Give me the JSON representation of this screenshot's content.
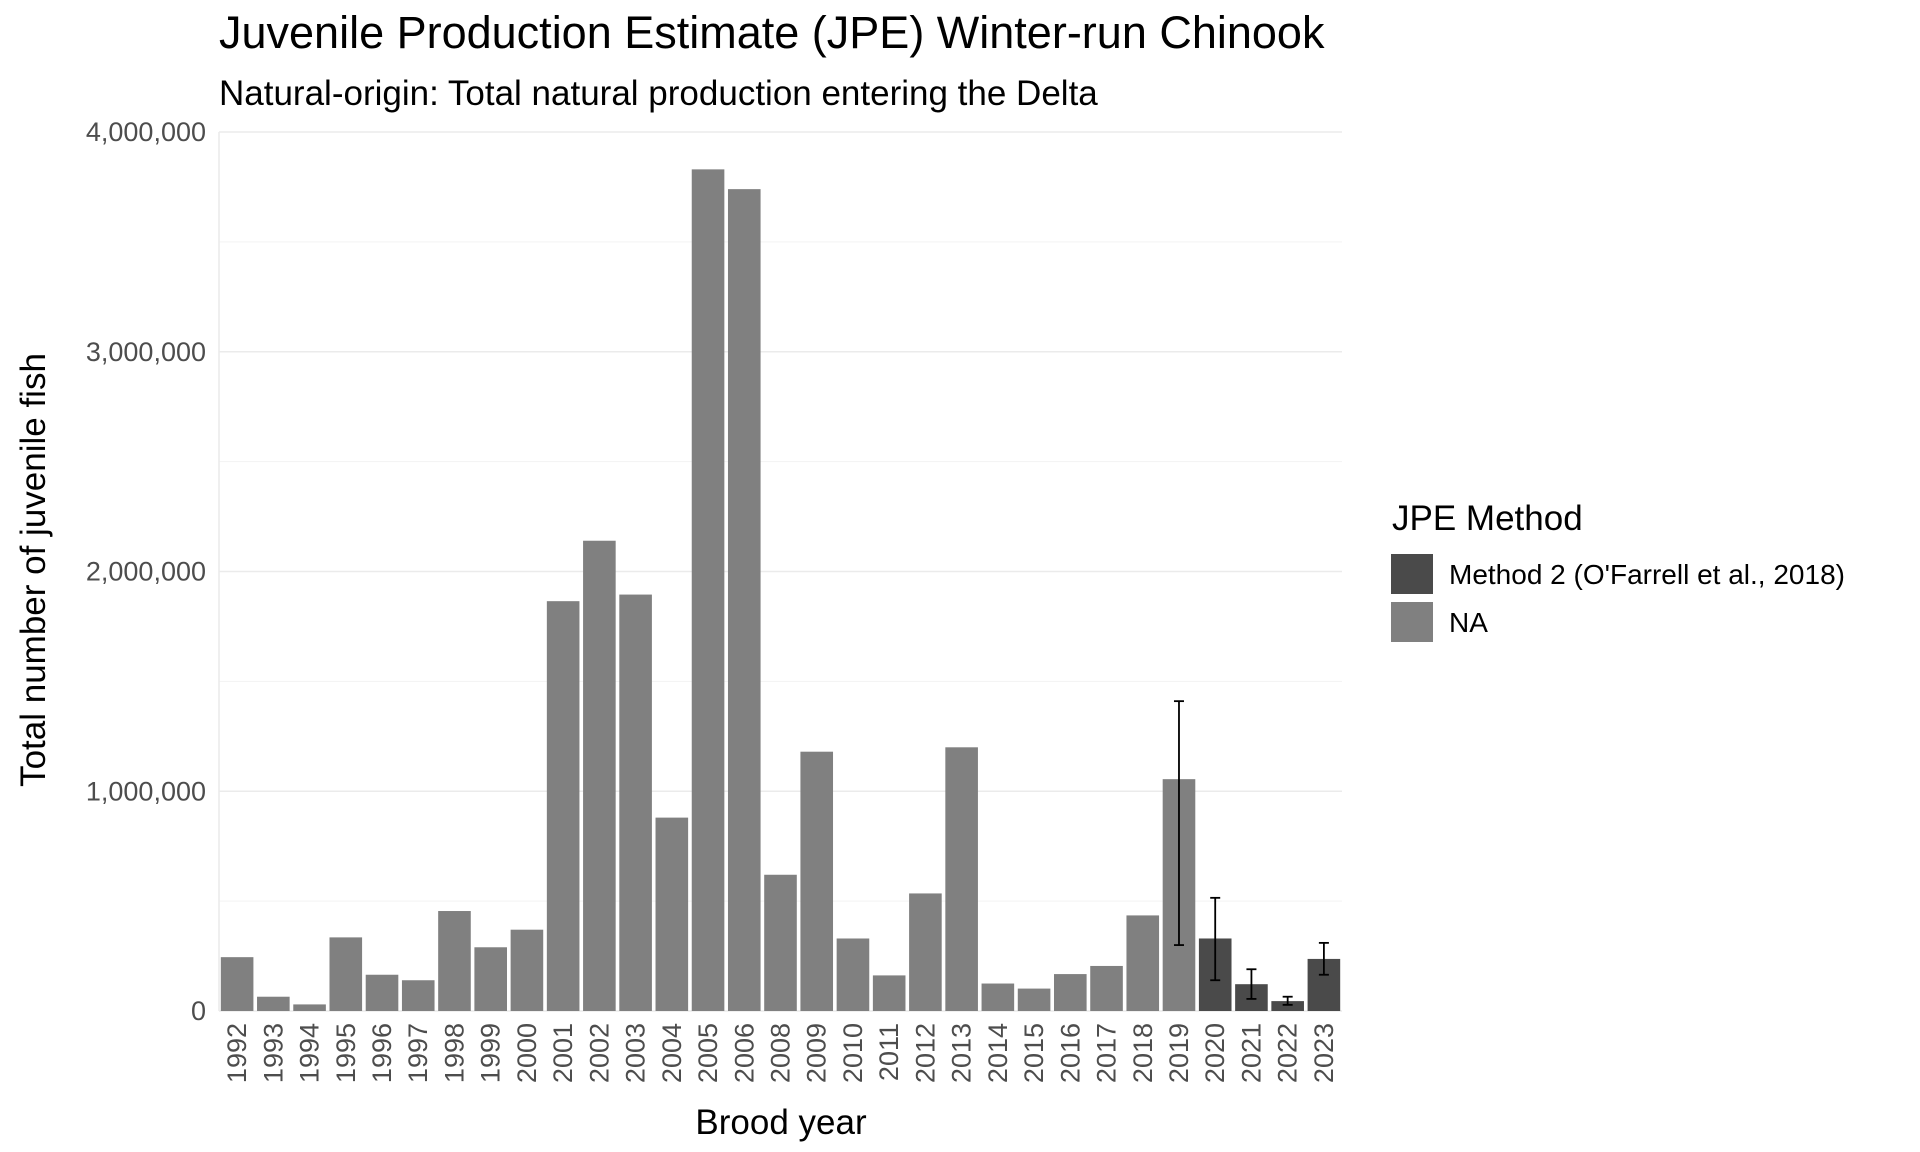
{
  "chart_data": {
    "type": "bar",
    "title": "Juvenile Production Estimate (JPE) Winter-run Chinook",
    "subtitle": "Natural-origin: Total natural production entering the Delta",
    "xlabel": "Brood year",
    "ylabel": "Total number of juvenile fish",
    "ylim": [
      0,
      4000000
    ],
    "y_ticks": [
      0,
      1000000,
      2000000,
      3000000,
      4000000
    ],
    "y_tick_labels": [
      "0",
      "1,000,000",
      "2,000,000",
      "3,000,000",
      "4,000,000"
    ],
    "grid": true,
    "legend": {
      "title": "JPE Method",
      "position": "right",
      "entries": [
        {
          "label": "Method 2 (O'Farrell et al., 2018)",
          "color": "#4a4a4a"
        },
        {
          "label": "NA",
          "color": "#808080"
        }
      ]
    },
    "categories": [
      "1992",
      "1993",
      "1994",
      "1995",
      "1996",
      "1997",
      "1998",
      "1999",
      "2000",
      "2001",
      "2002",
      "2003",
      "2004",
      "2005",
      "2006",
      "2008",
      "2009",
      "2010",
      "2011",
      "2012",
      "2013",
      "2014",
      "2015",
      "2016",
      "2017",
      "2018",
      "2019",
      "2020",
      "2021",
      "2022",
      "2023"
    ],
    "values": [
      245000,
      65000,
      30000,
      335000,
      165000,
      140000,
      455000,
      290000,
      370000,
      1865000,
      2140000,
      1895000,
      880000,
      3830000,
      3740000,
      620000,
      1180000,
      330000,
      162000,
      535000,
      1200000,
      125000,
      102000,
      168000,
      205000,
      435000,
      1055000,
      330000,
      122000,
      45000,
      237000
    ],
    "method": [
      "NA",
      "NA",
      "NA",
      "NA",
      "NA",
      "NA",
      "NA",
      "NA",
      "NA",
      "NA",
      "NA",
      "NA",
      "NA",
      "NA",
      "NA",
      "NA",
      "NA",
      "NA",
      "NA",
      "NA",
      "NA",
      "NA",
      "NA",
      "NA",
      "NA",
      "NA",
      "NA",
      "Method 2 (O'Farrell et al., 2018)",
      "Method 2 (O'Farrell et al., 2018)",
      "Method 2 (O'Farrell et al., 2018)",
      "Method 2 (O'Farrell et al., 2018)"
    ],
    "error_bars": [
      {
        "category": "2019",
        "lower": 300000,
        "upper": 1410000
      },
      {
        "category": "2020",
        "lower": 140000,
        "upper": 515000
      },
      {
        "category": "2021",
        "lower": 55000,
        "upper": 190000
      },
      {
        "category": "2022",
        "lower": 28000,
        "upper": 65000
      },
      {
        "category": "2023",
        "lower": 165000,
        "upper": 310000
      }
    ]
  }
}
